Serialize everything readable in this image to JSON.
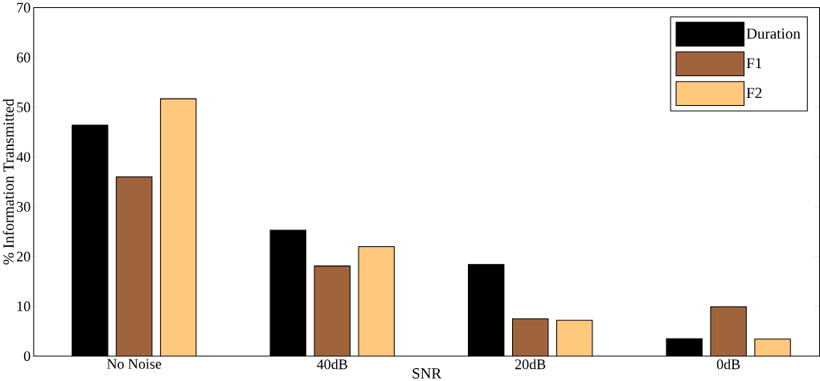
{
  "chart_data": {
    "type": "bar",
    "xlabel": "SNR",
    "ylabel": "% Information Transmitted",
    "categories": [
      "No Noise",
      "40dB",
      "20dB",
      "0dB"
    ],
    "series": [
      {
        "name": "Duration",
        "color": "#000000",
        "values": [
          46.4,
          25.3,
          18.4,
          3.5
        ]
      },
      {
        "name": "F1",
        "color": "#a0643c",
        "values": [
          36.0,
          18.1,
          7.5,
          9.9
        ]
      },
      {
        "name": "F2",
        "color": "#ffc87c",
        "values": [
          51.7,
          22.0,
          7.2,
          3.4
        ]
      }
    ],
    "ylim": [
      0,
      70
    ],
    "yticks": [
      0,
      10,
      20,
      30,
      40,
      50,
      60,
      70
    ],
    "legend": "top right"
  }
}
